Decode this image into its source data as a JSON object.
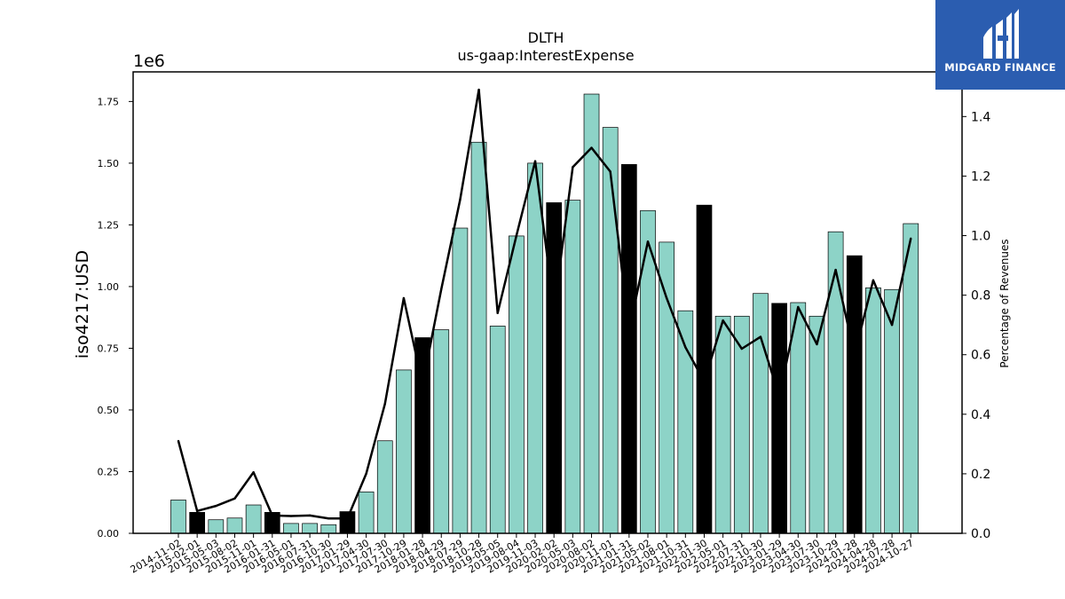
{
  "brand": {
    "name": "MIDGARD FINANCE",
    "bg_color": "#2b5db0"
  },
  "chart_data": {
    "type": "bar",
    "title": "DLTH",
    "subtitle": "us-gaap:InterestExpense",
    "ylabel": "iso4217:USD",
    "y_multiplier_label": "1e6",
    "y2label": "Percentage of Revenues",
    "ylim": [
      0,
      1870000
    ],
    "y2lim": [
      0,
      1.55
    ],
    "yticks": [
      "0.00",
      "0.25",
      "0.50",
      "0.75",
      "1.00",
      "1.25",
      "1.50",
      "1.75"
    ],
    "y2ticks": [
      "0.0",
      "0.2",
      "0.4",
      "0.6",
      "0.8",
      "1.0",
      "1.2",
      "1.4"
    ],
    "bar_color": "#8dd3c7",
    "highlight_color": "#000000",
    "categories": [
      "2014-11-02",
      "2015-02-01",
      "2015-05-03",
      "2015-08-02",
      "2015-11-01",
      "2016-01-31",
      "2016-05-01",
      "2016-07-31",
      "2016-10-30",
      "2017-01-29",
      "2017-04-30",
      "2017-07-30",
      "2017-10-29",
      "2018-01-28",
      "2018-04-29",
      "2018-07-29",
      "2018-10-28",
      "2019-05-05",
      "2019-08-04",
      "2019-11-03",
      "2020-02-02",
      "2020-05-03",
      "2020-08-02",
      "2020-11-01",
      "2021-01-31",
      "2021-05-02",
      "2021-08-01",
      "2021-10-31",
      "2022-01-30",
      "2022-05-01",
      "2022-07-31",
      "2022-10-30",
      "2023-01-29",
      "2023-04-30",
      "2023-07-30",
      "2023-10-29",
      "2024-01-28",
      "2024-04-28",
      "2024-07-28",
      "2024-10-27"
    ],
    "series": [
      {
        "values": [
          135000,
          85000,
          55000,
          62000,
          115000,
          85000,
          40000,
          40000,
          35000,
          88000,
          168000,
          375000,
          662000,
          793000,
          825000,
          1237000,
          1585000,
          840000,
          1205000,
          1500000,
          1340000,
          1350000,
          1780000,
          1645000,
          1495000,
          1308000,
          1180000,
          902000,
          1330000,
          880000,
          880000,
          972000,
          932000,
          935000,
          880000,
          1222000,
          1125000,
          995000,
          988000,
          1255000
        ],
        "highlighted": [
          false,
          true,
          false,
          false,
          false,
          true,
          false,
          false,
          false,
          true,
          false,
          false,
          false,
          true,
          false,
          false,
          false,
          false,
          false,
          false,
          true,
          false,
          false,
          false,
          true,
          false,
          false,
          false,
          true,
          false,
          false,
          false,
          true,
          false,
          false,
          false,
          true,
          false,
          false,
          false
        ]
      },
      {
        "values": [
          0.31,
          0.075,
          0.092,
          0.117,
          0.205,
          0.06,
          0.058,
          0.06,
          0.05,
          0.05,
          0.2,
          0.435,
          0.79,
          0.5,
          0.82,
          1.12,
          1.49,
          0.74,
          1.0,
          1.25,
          0.75,
          1.23,
          1.295,
          1.215,
          0.68,
          0.98,
          0.79,
          0.625,
          0.51,
          0.715,
          0.62,
          0.66,
          0.46,
          0.76,
          0.635,
          0.885,
          0.6,
          0.85,
          0.7,
          0.99
        ]
      }
    ]
  }
}
